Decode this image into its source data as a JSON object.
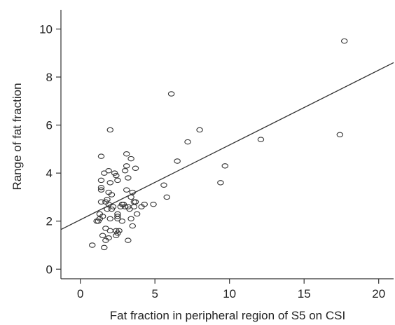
{
  "chart_data": {
    "type": "scatter",
    "xlabel": "Fat fraction in peripheral region of S5 on CSI",
    "ylabel": "Range of fat fraction",
    "xlim": [
      -1.3,
      21
    ],
    "ylim": [
      -0.4,
      10.8
    ],
    "xticks": [
      0,
      5,
      10,
      15,
      20
    ],
    "yticks": [
      0,
      2,
      4,
      6,
      8,
      10
    ],
    "grid": false,
    "legend": "none",
    "fit_line": {
      "x": [
        -1.3,
        21
      ],
      "y": [
        1.65,
        8.6
      ]
    },
    "points": [
      {
        "x": 0.8,
        "y": 1.0
      },
      {
        "x": 1.1,
        "y": 2.0
      },
      {
        "x": 1.2,
        "y": 2.0
      },
      {
        "x": 1.3,
        "y": 2.1
      },
      {
        "x": 1.3,
        "y": 2.3
      },
      {
        "x": 1.4,
        "y": 2.8
      },
      {
        "x": 1.4,
        "y": 3.3
      },
      {
        "x": 1.4,
        "y": 3.4
      },
      {
        "x": 1.4,
        "y": 3.7
      },
      {
        "x": 1.4,
        "y": 4.7
      },
      {
        "x": 1.5,
        "y": 1.4
      },
      {
        "x": 1.5,
        "y": 2.2
      },
      {
        "x": 1.6,
        "y": 0.9
      },
      {
        "x": 1.6,
        "y": 4.0
      },
      {
        "x": 1.7,
        "y": 1.2
      },
      {
        "x": 1.7,
        "y": 1.7
      },
      {
        "x": 1.7,
        "y": 2.8
      },
      {
        "x": 1.8,
        "y": 2.5
      },
      {
        "x": 1.8,
        "y": 2.9
      },
      {
        "x": 1.9,
        "y": 1.3
      },
      {
        "x": 1.9,
        "y": 2.7
      },
      {
        "x": 1.9,
        "y": 3.2
      },
      {
        "x": 1.9,
        "y": 4.1
      },
      {
        "x": 2.0,
        "y": 1.6
      },
      {
        "x": 2.0,
        "y": 2.1
      },
      {
        "x": 2.0,
        "y": 3.6
      },
      {
        "x": 2.0,
        "y": 5.8
      },
      {
        "x": 2.1,
        "y": 2.5
      },
      {
        "x": 2.1,
        "y": 3.1
      },
      {
        "x": 2.2,
        "y": 2.6
      },
      {
        "x": 2.3,
        "y": 4.0
      },
      {
        "x": 2.4,
        "y": 1.4
      },
      {
        "x": 2.4,
        "y": 1.6
      },
      {
        "x": 2.4,
        "y": 3.9
      },
      {
        "x": 2.5,
        "y": 1.5
      },
      {
        "x": 2.5,
        "y": 2.1
      },
      {
        "x": 2.5,
        "y": 2.2
      },
      {
        "x": 2.5,
        "y": 2.3
      },
      {
        "x": 2.5,
        "y": 3.7
      },
      {
        "x": 2.6,
        "y": 1.6
      },
      {
        "x": 2.7,
        "y": 2.6
      },
      {
        "x": 2.8,
        "y": 2.0
      },
      {
        "x": 2.8,
        "y": 2.7
      },
      {
        "x": 2.9,
        "y": 2.7
      },
      {
        "x": 3.0,
        "y": 2.6
      },
      {
        "x": 3.0,
        "y": 4.1
      },
      {
        "x": 3.1,
        "y": 3.3
      },
      {
        "x": 3.1,
        "y": 4.3
      },
      {
        "x": 3.1,
        "y": 4.8
      },
      {
        "x": 3.2,
        "y": 1.2
      },
      {
        "x": 3.2,
        "y": 2.6
      },
      {
        "x": 3.2,
        "y": 3.8
      },
      {
        "x": 3.3,
        "y": 2.5
      },
      {
        "x": 3.4,
        "y": 2.1
      },
      {
        "x": 3.4,
        "y": 3.0
      },
      {
        "x": 3.4,
        "y": 4.6
      },
      {
        "x": 3.5,
        "y": 1.8
      },
      {
        "x": 3.5,
        "y": 3.2
      },
      {
        "x": 3.6,
        "y": 2.6
      },
      {
        "x": 3.6,
        "y": 2.8
      },
      {
        "x": 3.7,
        "y": 2.8
      },
      {
        "x": 3.7,
        "y": 4.2
      },
      {
        "x": 3.8,
        "y": 2.3
      },
      {
        "x": 4.1,
        "y": 2.6
      },
      {
        "x": 4.3,
        "y": 2.7
      },
      {
        "x": 4.9,
        "y": 2.7
      },
      {
        "x": 5.6,
        "y": 3.5
      },
      {
        "x": 5.8,
        "y": 3.0
      },
      {
        "x": 6.1,
        "y": 7.3
      },
      {
        "x": 6.5,
        "y": 4.5
      },
      {
        "x": 7.2,
        "y": 5.3
      },
      {
        "x": 8.0,
        "y": 5.8
      },
      {
        "x": 9.4,
        "y": 3.6
      },
      {
        "x": 9.7,
        "y": 4.3
      },
      {
        "x": 12.1,
        "y": 5.4
      },
      {
        "x": 17.4,
        "y": 5.6
      },
      {
        "x": 17.7,
        "y": 9.5
      }
    ]
  }
}
